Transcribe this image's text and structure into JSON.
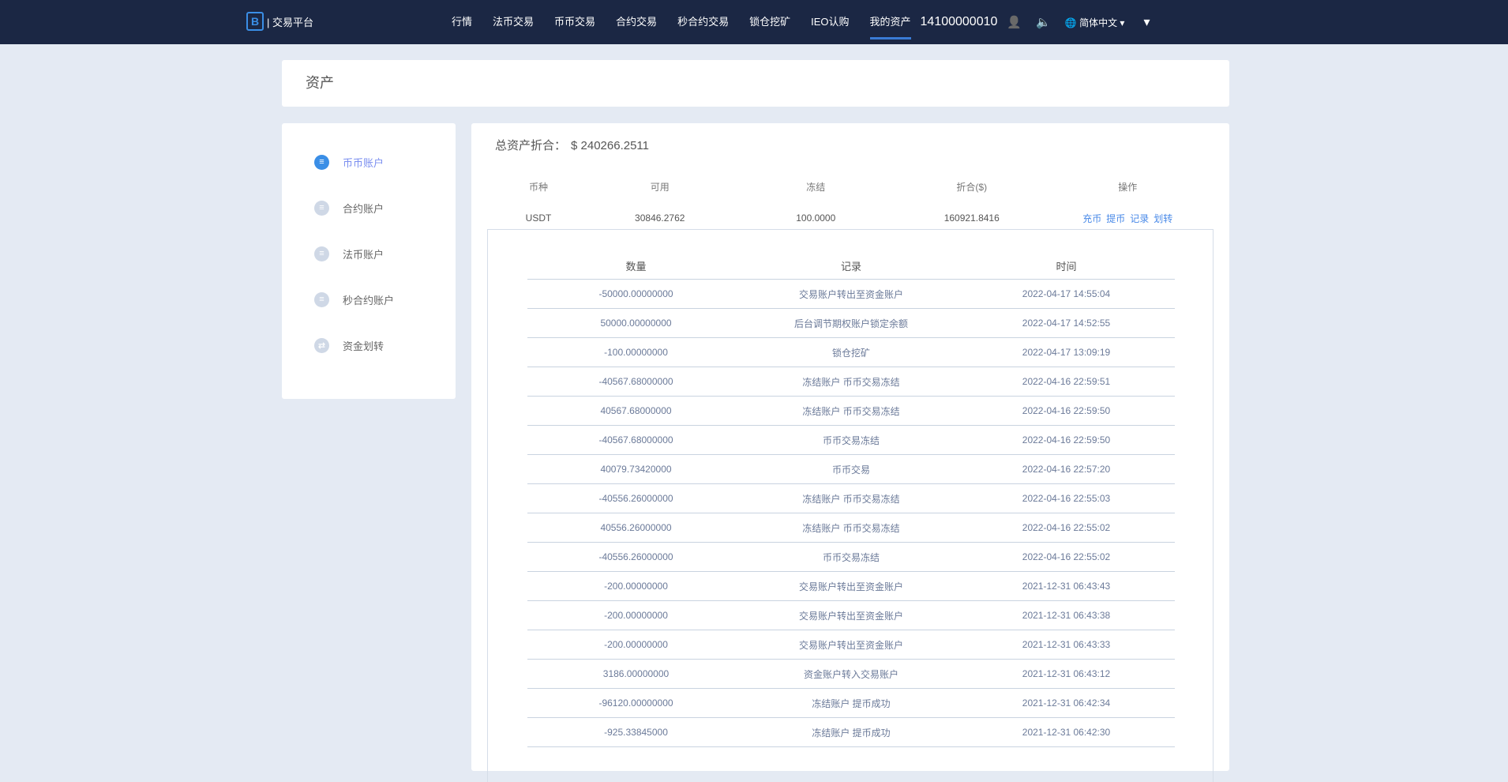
{
  "header": {
    "logo_text": "| 交易平台",
    "nav": [
      "行情",
      "法币交易",
      "币币交易",
      "合约交易",
      "秒合约交易",
      "锁仓挖矿",
      "IEO认购",
      "我的资产"
    ],
    "active_nav": "我的资产",
    "phone": "14100000010",
    "language": "简体中文",
    "icons": [
      "user-icon",
      "speaker-icon",
      "globe-icon",
      "caret-down-icon"
    ]
  },
  "page_title": "资产",
  "sidebar": {
    "items": [
      {
        "label": "币币账户",
        "active": true
      },
      {
        "label": "合约账户"
      },
      {
        "label": "法币账户"
      },
      {
        "label": "秒合约账户"
      },
      {
        "label": "资金划转"
      }
    ]
  },
  "summary": {
    "label": "总资产折合：",
    "value": "$ 240266.2511"
  },
  "accounts": {
    "headers": [
      "币种",
      "可用",
      "冻结",
      "折合($)",
      "操作"
    ],
    "rows": [
      {
        "coin": "USDT",
        "available": "30846.2762",
        "frozen": "100.0000",
        "value": "160921.8416",
        "ops": [
          "充币",
          "提币",
          "记录",
          "划转"
        ]
      }
    ]
  },
  "colors": {
    "header_bg": "#1b2744",
    "accent": "#3a8ee6",
    "link": "#4a8ae8"
  },
  "records": {
    "headers": [
      "数量",
      "记录",
      "时间"
    ],
    "rows": [
      [
        "-50000.00000000",
        "交易账户转出至资金账户",
        "2022-04-17 14:55:04"
      ],
      [
        "50000.00000000",
        "后台调节期权账户锁定余额",
        "2022-04-17 14:52:55"
      ],
      [
        "-100.00000000",
        "锁仓挖矿",
        "2022-04-17 13:09:19"
      ],
      [
        "-40567.68000000",
        "冻结账户 币币交易冻结",
        "2022-04-16 22:59:51"
      ],
      [
        "40567.68000000",
        "冻结账户 币币交易冻结",
        "2022-04-16 22:59:50"
      ],
      [
        "-40567.68000000",
        "币币交易冻结",
        "2022-04-16 22:59:50"
      ],
      [
        "40079.73420000",
        "币币交易",
        "2022-04-16 22:57:20"
      ],
      [
        "-40556.26000000",
        "冻结账户 币币交易冻结",
        "2022-04-16 22:55:03"
      ],
      [
        "40556.26000000",
        "冻结账户 币币交易冻结",
        "2022-04-16 22:55:02"
      ],
      [
        "-40556.26000000",
        "币币交易冻结",
        "2022-04-16 22:55:02"
      ],
      [
        "-200.00000000",
        "交易账户转出至资金账户",
        "2021-12-31 06:43:43"
      ],
      [
        "-200.00000000",
        "交易账户转出至资金账户",
        "2021-12-31 06:43:38"
      ],
      [
        "-200.00000000",
        "交易账户转出至资金账户",
        "2021-12-31 06:43:33"
      ],
      [
        "3186.00000000",
        "资金账户转入交易账户",
        "2021-12-31 06:43:12"
      ],
      [
        "-96120.00000000",
        "冻结账户 提币成功",
        "2021-12-31 06:42:34"
      ],
      [
        "-925.33845000",
        "冻结账户 提币成功",
        "2021-12-31 06:42:30"
      ]
    ]
  }
}
